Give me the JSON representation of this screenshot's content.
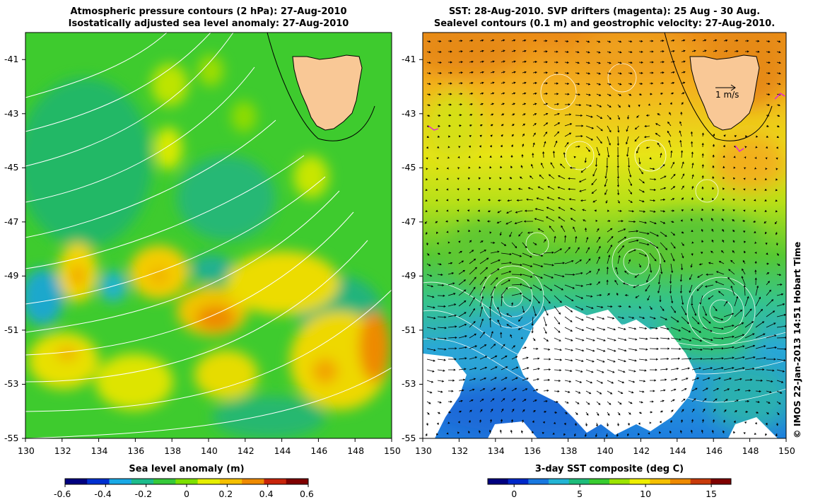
{
  "left_panel": {
    "title_line1": "Atmospheric pressure contours (2 hPa): 27-Aug-2010",
    "title_line2": "Isostatically adjusted sea level anomaly: 27-Aug-2010",
    "lon_ticks": [
      "130",
      "132",
      "134",
      "136",
      "138",
      "140",
      "142",
      "144",
      "146",
      "148",
      "150"
    ],
    "lat_ticks": [
      "-41",
      "-43",
      "-45",
      "-47",
      "-49",
      "-51",
      "-53",
      "-55"
    ],
    "colorbar": {
      "label": "Sea level anomaly (m)",
      "ticks": [
        "-0.6",
        "-0.4",
        "-0.2",
        "0",
        "0.2",
        "0.4",
        "0.6"
      ],
      "range": [
        -0.6,
        0.6
      ],
      "colors": [
        "#00007f",
        "#0030d0",
        "#19a9e6",
        "#1dbc8c",
        "#36c93a",
        "#7de000",
        "#e6ee00",
        "#f5c000",
        "#ee8a00",
        "#c8240a",
        "#7f0000"
      ]
    }
  },
  "right_panel": {
    "title_line1": "SST: 28-Aug-2010. SVP drifters (magenta): 25 Aug - 30 Aug.",
    "title_line2": "Sealevel contours (0.1 m) and geostrophic velocity: 27-Aug-2010.",
    "lon_ticks": [
      "130",
      "132",
      "134",
      "136",
      "138",
      "140",
      "142",
      "144",
      "146",
      "148",
      "150"
    ],
    "lat_ticks": [
      "-41",
      "-43",
      "-45",
      "-47",
      "-49",
      "-51",
      "-53",
      "-55"
    ],
    "scale_label": "1 m/s",
    "colorbar": {
      "label": "3-day SST composite (deg C)",
      "ticks": [
        "0",
        "5",
        "10",
        "15"
      ],
      "range": [
        -2,
        16.5
      ],
      "colors": [
        "#00007f",
        "#0028c8",
        "#1878e0",
        "#22b4d4",
        "#1dbc7a",
        "#38cc30",
        "#9ce400",
        "#eeee00",
        "#f5c000",
        "#ee8a00",
        "#c83a0a",
        "#7f0000"
      ]
    }
  },
  "credit": "© IMOS 22-Jan-2013 14:51 Hobart Time",
  "colors": {
    "land": "#f9c896",
    "sla_bg": "#3ecb2e",
    "sst_warm": "#f0a21c",
    "sst_mid": "#7ed626",
    "sst_cold": "#2296e0",
    "pressure_contour": "#ffffff",
    "velocity_vector": "#000000"
  }
}
